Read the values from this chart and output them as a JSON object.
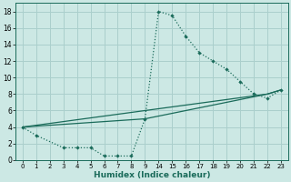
{
  "xlabel": "Humidex (Indice chaleur)",
  "bg_color": "#cce8e4",
  "grid_color": "#aacfcc",
  "line_color": "#1a6b5a",
  "xlim": [
    -0.5,
    23.5
  ],
  "ylim": [
    0,
    19
  ],
  "xticks": [
    0,
    1,
    2,
    3,
    4,
    5,
    6,
    7,
    8,
    9,
    14,
    15,
    16,
    17,
    18,
    19,
    20,
    21,
    22,
    23
  ],
  "yticks": [
    0,
    2,
    4,
    6,
    8,
    10,
    12,
    14,
    16,
    18
  ],
  "series1_x": [
    0,
    1,
    3,
    4,
    5,
    6,
    7,
    8,
    9,
    14,
    15,
    16,
    17,
    18,
    19,
    20,
    21,
    22,
    23
  ],
  "series1_y": [
    4,
    3,
    1.5,
    1.5,
    1.5,
    0.5,
    0.5,
    0.5,
    5,
    18,
    17.5,
    15,
    13,
    12,
    11,
    9.5,
    8,
    7.5,
    8.5
  ],
  "series2_x": [
    0,
    22,
    23
  ],
  "series2_y": [
    4,
    8,
    8.5
  ],
  "series3_x": [
    0,
    9,
    22,
    23
  ],
  "series3_y": [
    4,
    5,
    8,
    8.5
  ]
}
